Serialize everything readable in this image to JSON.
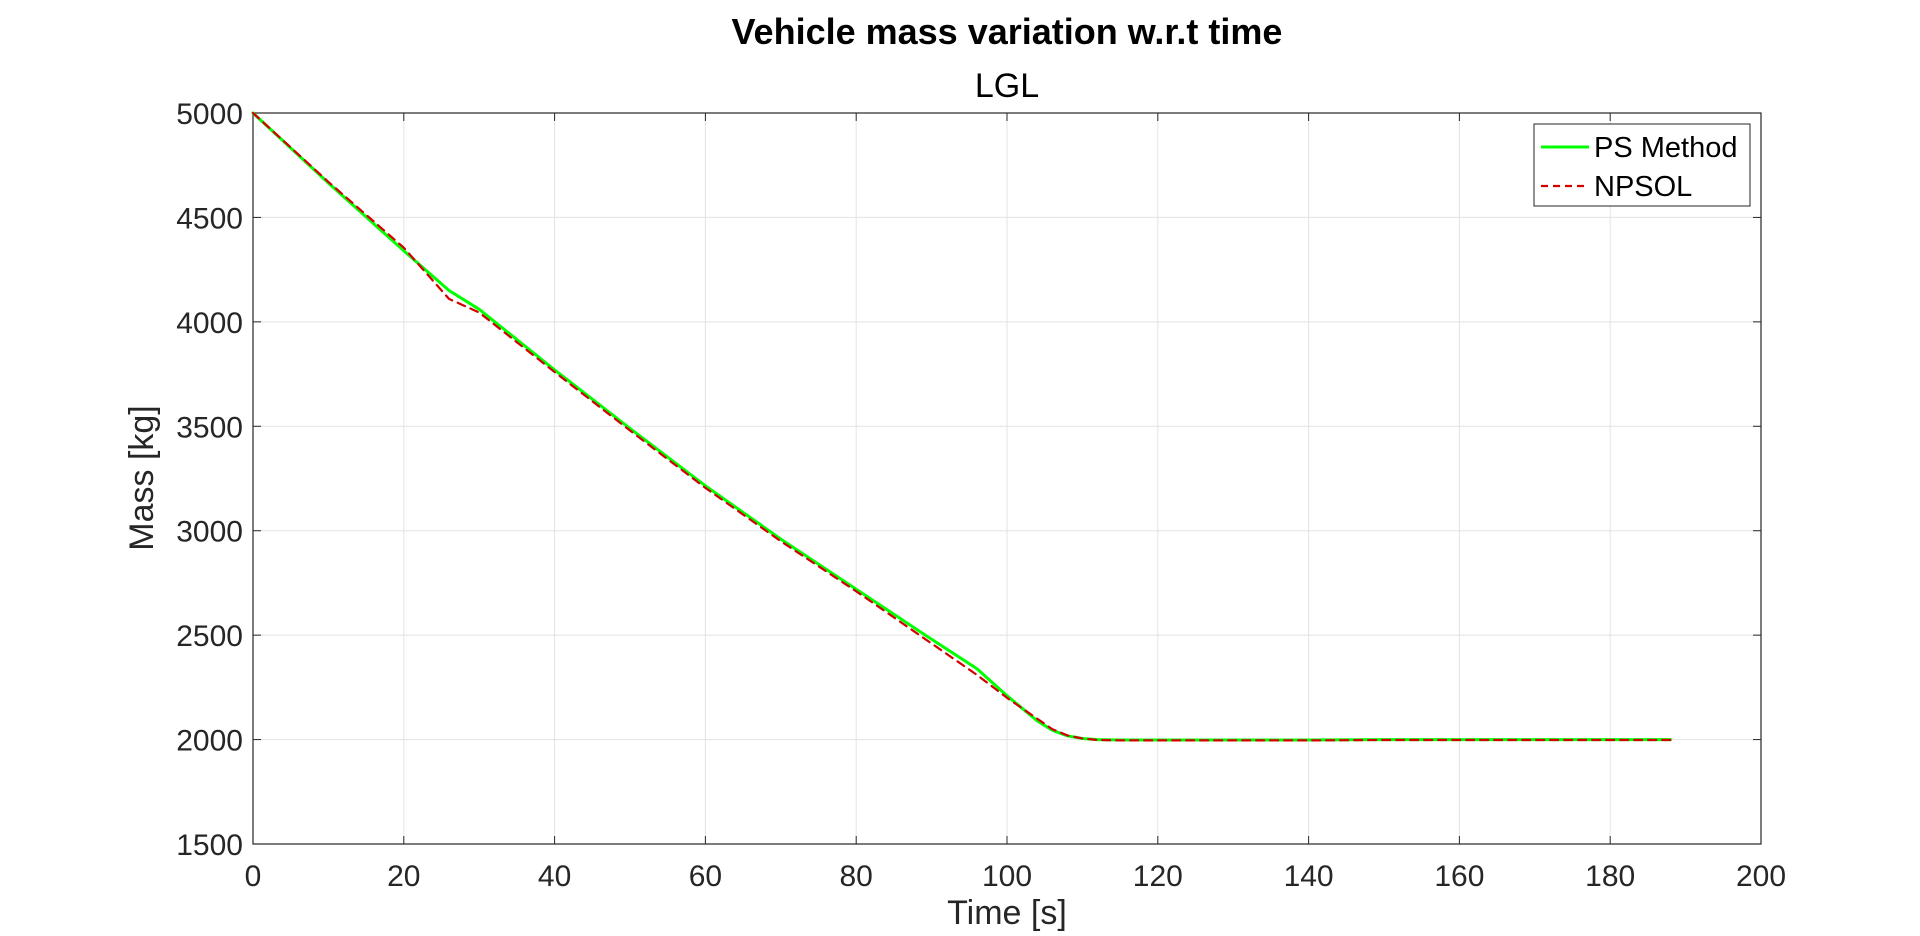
{
  "chart_data": {
    "type": "line",
    "title": "Vehicle mass variation w.r.t time",
    "subtitle": "LGL",
    "xlabel": "Time [s]",
    "ylabel": "Mass [kg]",
    "xlim": [
      0,
      200
    ],
    "ylim": [
      1500,
      5000
    ],
    "xticks": [
      0,
      20,
      40,
      60,
      80,
      100,
      120,
      140,
      160,
      180,
      200
    ],
    "yticks": [
      1500,
      2000,
      2500,
      3000,
      3500,
      4000,
      4500,
      5000
    ],
    "grid": true,
    "legend_position": "top-right",
    "series": [
      {
        "name": "PS Method",
        "color": "#00ff00",
        "style": "solid",
        "x": [
          0,
          10,
          20,
          26,
          30,
          40,
          50,
          60,
          70,
          80,
          90,
          96,
          100,
          104,
          106,
          108,
          110,
          112,
          115,
          120,
          130,
          140,
          150,
          160,
          170,
          180,
          188
        ],
        "y": [
          5000,
          4665,
          4340,
          4150,
          4060,
          3770,
          3490,
          3215,
          2960,
          2720,
          2480,
          2340,
          2210,
          2090,
          2045,
          2018,
          2005,
          2000,
          1998,
          1998,
          1998,
          1998,
          2000,
          2000,
          2000,
          2000,
          2000
        ]
      },
      {
        "name": "NPSOL",
        "color": "#d40000",
        "style": "dashed",
        "x": [
          0,
          10,
          20,
          26,
          30,
          40,
          50,
          60,
          70,
          80,
          90,
          96,
          100,
          104,
          106,
          108,
          110,
          112,
          115,
          120,
          130,
          140,
          150,
          160,
          170,
          180,
          188
        ],
        "y": [
          5000,
          4670,
          4355,
          4110,
          4045,
          3760,
          3480,
          3205,
          2950,
          2710,
          2460,
          2310,
          2200,
          2100,
          2050,
          2020,
          2005,
          1998,
          1996,
          1996,
          1996,
          1996,
          1998,
          1998,
          1998,
          1998,
          1998
        ]
      }
    ]
  }
}
